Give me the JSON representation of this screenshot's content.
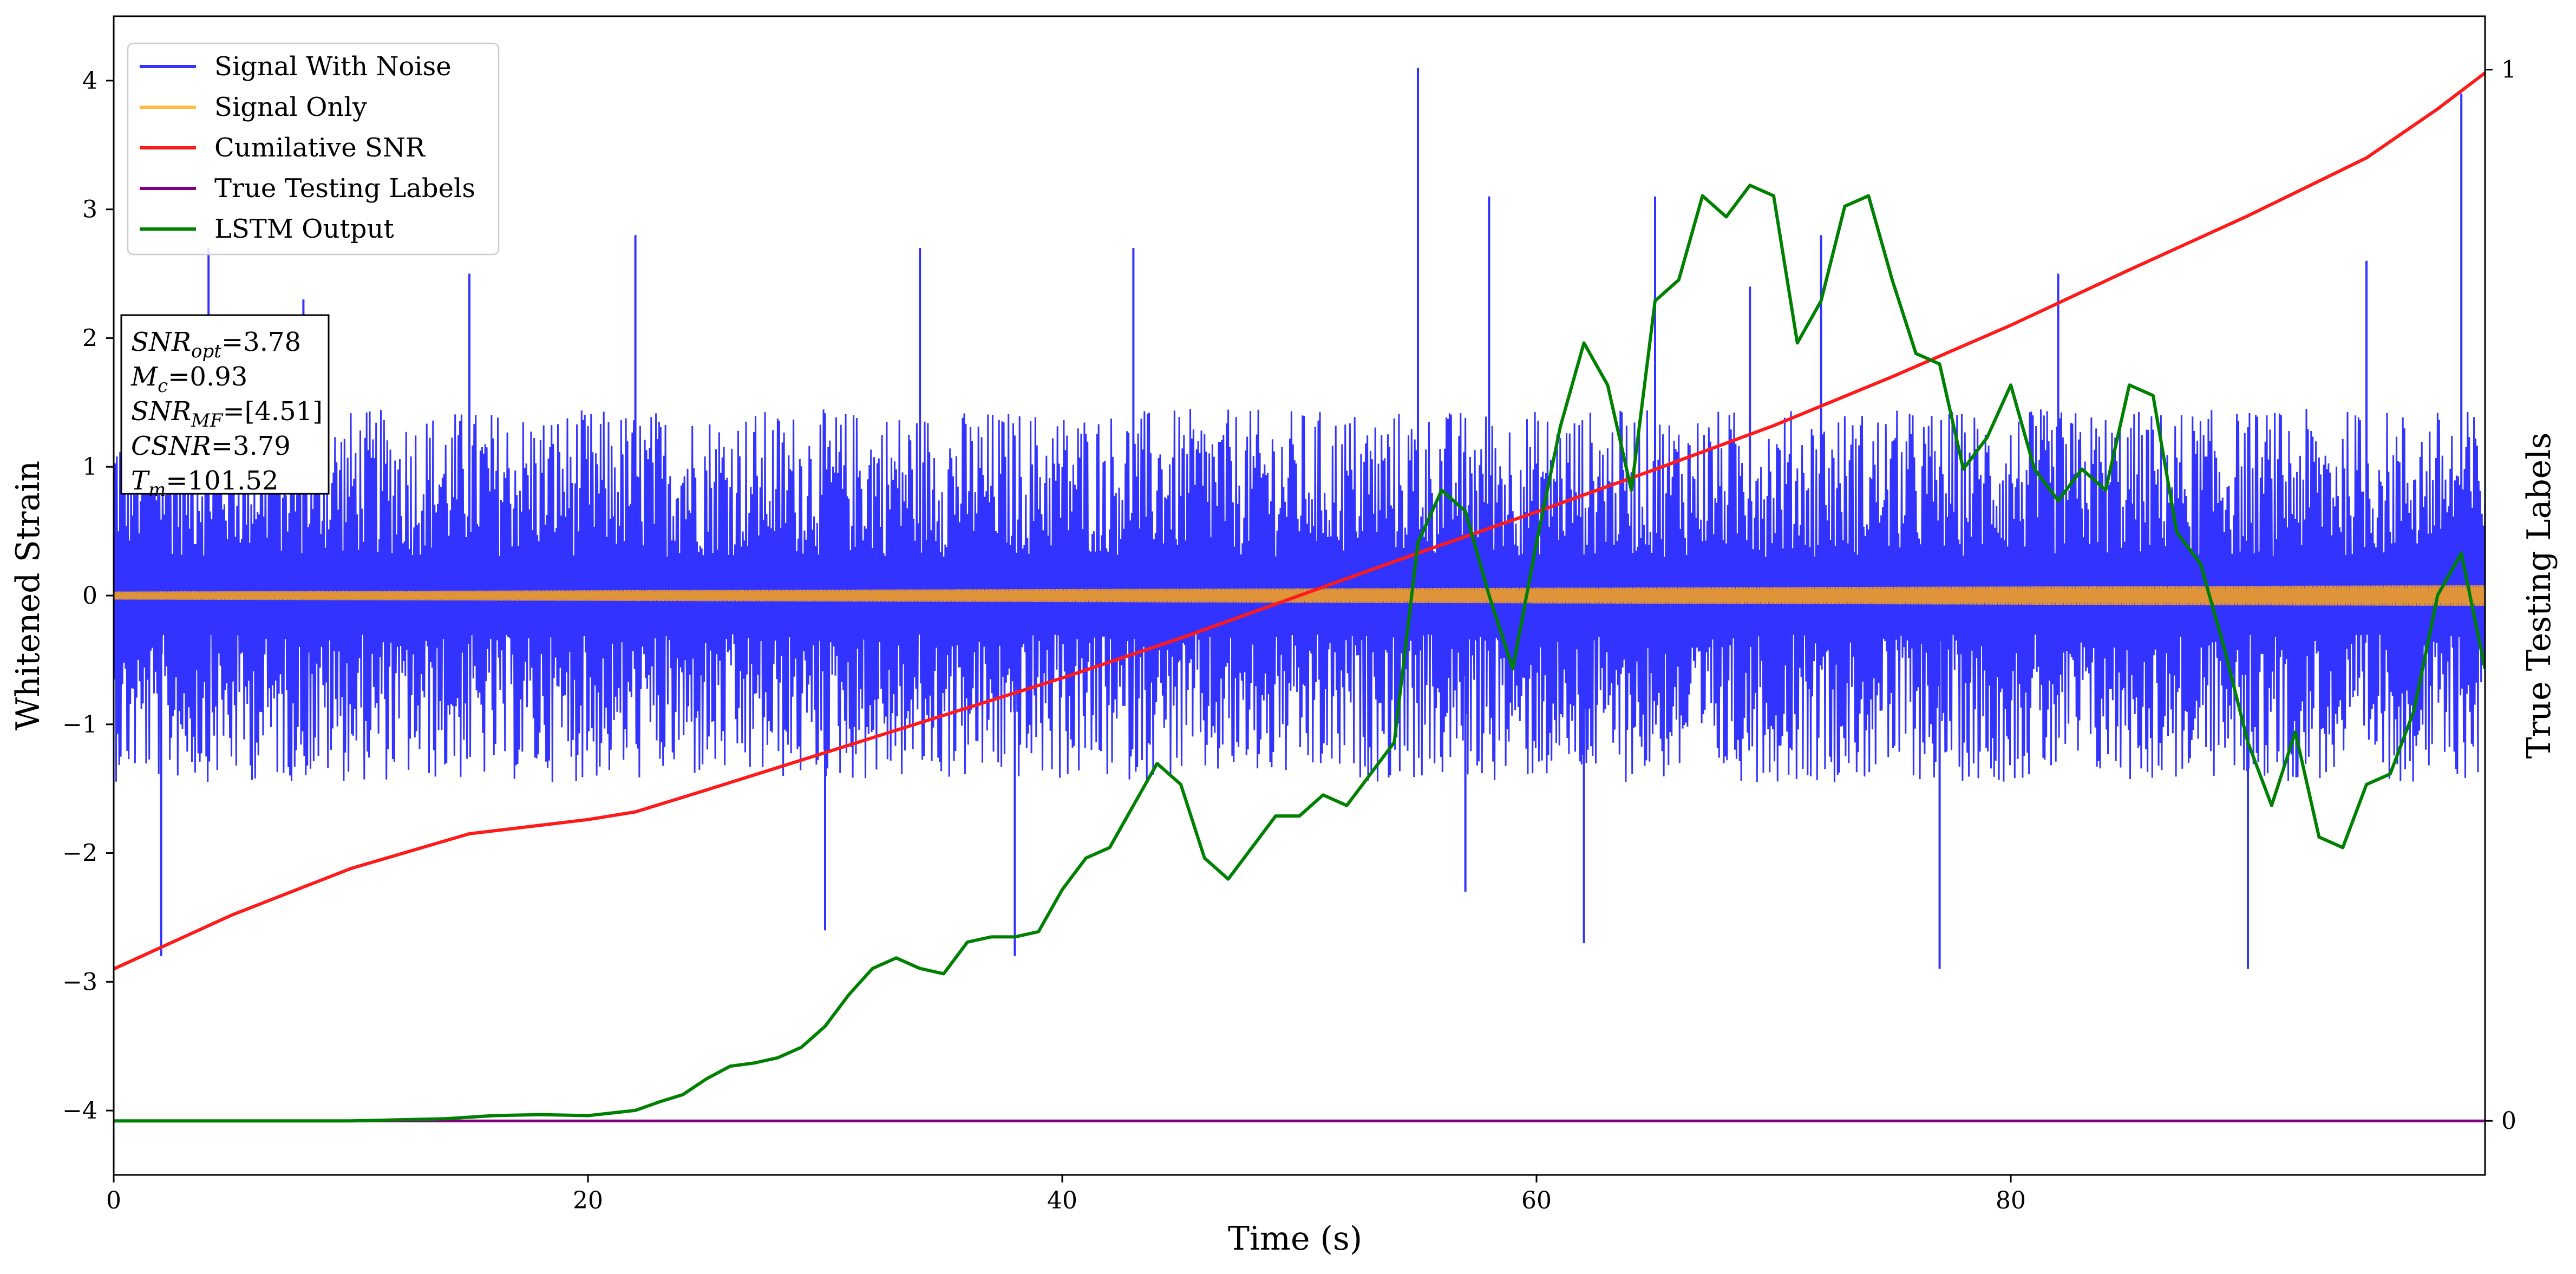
{
  "chart_data": {
    "type": "line",
    "xlabel": "Time (s)",
    "ylabel": "Whitened Strain",
    "y2label": "True Testing Labels",
    "xlim": [
      0,
      100
    ],
    "ylim": [
      -4.5,
      4.5
    ],
    "y2lim": [
      -0.0514,
      1.0508
    ],
    "xticks": [
      0,
      20,
      40,
      60,
      80
    ],
    "yticks": [
      -4,
      -3,
      -2,
      -1,
      0,
      1,
      2,
      3,
      4
    ],
    "y2ticks": [
      0,
      1
    ],
    "legend": {
      "placement": "upper-left",
      "entries": [
        {
          "label": "Signal With Noise",
          "color": "#3333ff"
        },
        {
          "label": "Signal Only",
          "color": "#ffbb44"
        },
        {
          "label": "Cumilative SNR",
          "color": "#ff1a1a"
        },
        {
          "label": "True Testing Labels",
          "color": "#800080"
        },
        {
          "label": "LSTM Output",
          "color": "#008000"
        }
      ]
    },
    "info_box": [
      {
        "base": "SNR",
        "sub": "opt",
        "value": "=3.78"
      },
      {
        "base": "M",
        "sub": "c",
        "value": "=0.93"
      },
      {
        "base": "SNR",
        "sub": "MF",
        "value": "=[4.51]"
      },
      {
        "base": "CSNR",
        "sub": "",
        "value": "=3.79"
      },
      {
        "base": "T",
        "sub": "m",
        "value": "=101.52"
      }
    ],
    "series": [
      {
        "name": "Signal With Noise",
        "axis": "left",
        "style": "noise-band",
        "color": "#3333ff",
        "band_low": -1.3,
        "band_high": 1.3,
        "spikes_x": [
          2,
          4,
          8,
          15,
          22,
          30,
          34,
          38,
          43,
          55,
          57,
          58,
          62,
          65,
          69,
          72,
          77,
          82,
          90,
          95,
          99
        ],
        "spikes_y": [
          -2.8,
          2.7,
          2.3,
          2.5,
          2.8,
          -2.6,
          2.7,
          -2.8,
          2.7,
          4.1,
          -2.3,
          3.1,
          -2.7,
          3.1,
          2.4,
          2.8,
          -2.9,
          2.5,
          -2.9,
          2.6,
          3.9
        ]
      },
      {
        "name": "Signal Only",
        "axis": "left",
        "style": "thin-band",
        "color": "#e0943a",
        "amplitude_start": 0.03,
        "amplitude_end": 0.08
      },
      {
        "name": "Cumilative SNR",
        "axis": "left",
        "color": "#ff1a1a",
        "x": [
          0,
          5,
          10,
          15,
          20,
          22,
          25,
          30,
          35,
          40,
          45,
          50,
          55,
          60,
          65,
          70,
          75,
          80,
          85,
          90,
          95,
          98,
          100
        ],
        "values": [
          -2.9,
          -2.48,
          -2.12,
          -1.85,
          -1.74,
          -1.68,
          -1.51,
          -1.22,
          -0.93,
          -0.64,
          -0.33,
          0.0,
          0.33,
          0.65,
          0.98,
          1.32,
          1.7,
          2.1,
          2.53,
          2.95,
          3.4,
          3.78,
          4.06
        ]
      },
      {
        "name": "True Testing Labels",
        "axis": "right",
        "color": "#800080",
        "x": [
          0,
          100
        ],
        "values": [
          0,
          0
        ]
      },
      {
        "name": "LSTM Output",
        "axis": "right",
        "color": "#008000",
        "x": [
          0,
          5,
          10,
          14,
          16,
          18,
          20,
          22,
          23,
          24,
          25,
          26,
          27,
          28,
          29,
          30,
          31,
          32,
          33,
          34,
          35,
          36,
          37,
          38,
          39,
          40,
          41,
          42,
          43,
          44,
          45,
          46,
          47,
          48,
          49,
          50,
          51,
          52,
          53,
          54,
          55,
          56,
          57,
          58,
          59,
          60,
          61,
          62,
          63,
          64,
          65,
          66,
          67,
          68,
          69,
          70,
          71,
          72,
          73,
          74,
          75,
          76,
          77,
          78,
          79,
          80,
          81,
          82,
          83,
          84,
          85,
          86,
          87,
          88,
          89,
          90,
          91,
          92,
          93,
          94,
          95,
          96,
          97,
          98,
          99,
          100
        ],
        "values": [
          0,
          0,
          0,
          0.002,
          0.005,
          0.006,
          0.005,
          0.01,
          0.018,
          0.025,
          0.04,
          0.052,
          0.055,
          0.06,
          0.07,
          0.09,
          0.12,
          0.145,
          0.155,
          0.145,
          0.14,
          0.17,
          0.175,
          0.175,
          0.18,
          0.22,
          0.25,
          0.26,
          0.3,
          0.34,
          0.32,
          0.25,
          0.23,
          0.26,
          0.29,
          0.29,
          0.31,
          0.3,
          0.33,
          0.36,
          0.55,
          0.6,
          0.58,
          0.5,
          0.43,
          0.55,
          0.66,
          0.74,
          0.7,
          0.6,
          0.78,
          0.8,
          0.88,
          0.86,
          0.89,
          0.88,
          0.74,
          0.78,
          0.87,
          0.88,
          0.8,
          0.73,
          0.72,
          0.62,
          0.65,
          0.7,
          0.62,
          0.59,
          0.62,
          0.6,
          0.7,
          0.69,
          0.56,
          0.53,
          0.45,
          0.36,
          0.3,
          0.37,
          0.27,
          0.26,
          0.32,
          0.33,
          0.39,
          0.5,
          0.54,
          0.43
        ]
      }
    ]
  }
}
